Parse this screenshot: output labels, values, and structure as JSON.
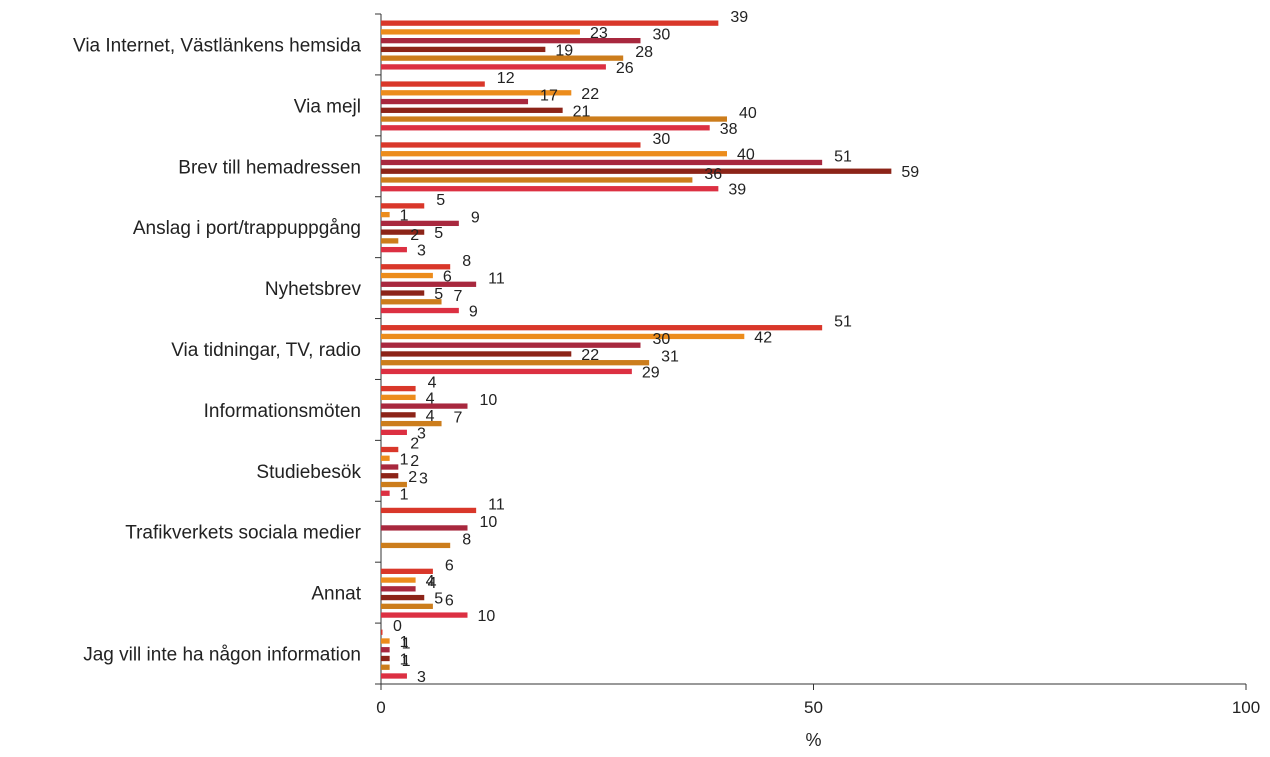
{
  "chart_data": {
    "type": "bar",
    "orientation": "horizontal",
    "title": "",
    "xlabel": "%",
    "ylabel": "",
    "xlim": [
      0,
      100
    ],
    "xticks": [
      0,
      50,
      100
    ],
    "grid": false,
    "legend": "none",
    "categories": [
      "Via Internet, Västlänkens hemsida",
      "Via mejl",
      "Brev till hemadressen",
      "Anslag i port/trappuppgång",
      "Nyhetsbrev",
      "Via tidningar, TV, radio",
      "Informationsmöten",
      "Studiebesök",
      "Trafikverkets sociala medier",
      "Annat",
      "Jag vill inte ha någon information"
    ],
    "series": [
      {
        "color": "#d9372a",
        "values": [
          39,
          12,
          30,
          5,
          8,
          51,
          4,
          2,
          11,
          6,
          0
        ]
      },
      {
        "color": "#ec8c1c",
        "values": [
          23,
          22,
          40,
          1,
          6,
          42,
          4,
          1,
          null,
          4,
          1
        ]
      },
      {
        "color": "#a8283e",
        "values": [
          30,
          17,
          51,
          9,
          11,
          30,
          10,
          2,
          10,
          4,
          1
        ]
      },
      {
        "color": "#8c2418",
        "values": [
          19,
          21,
          59,
          5,
          5,
          22,
          4,
          2,
          null,
          5,
          1
        ]
      },
      {
        "color": "#cc7d1c",
        "values": [
          28,
          40,
          36,
          2,
          7,
          31,
          7,
          3,
          8,
          6,
          1
        ]
      },
      {
        "color": "#dc3042",
        "values": [
          26,
          38,
          39,
          3,
          9,
          29,
          3,
          1,
          null,
          10,
          3
        ]
      }
    ]
  }
}
